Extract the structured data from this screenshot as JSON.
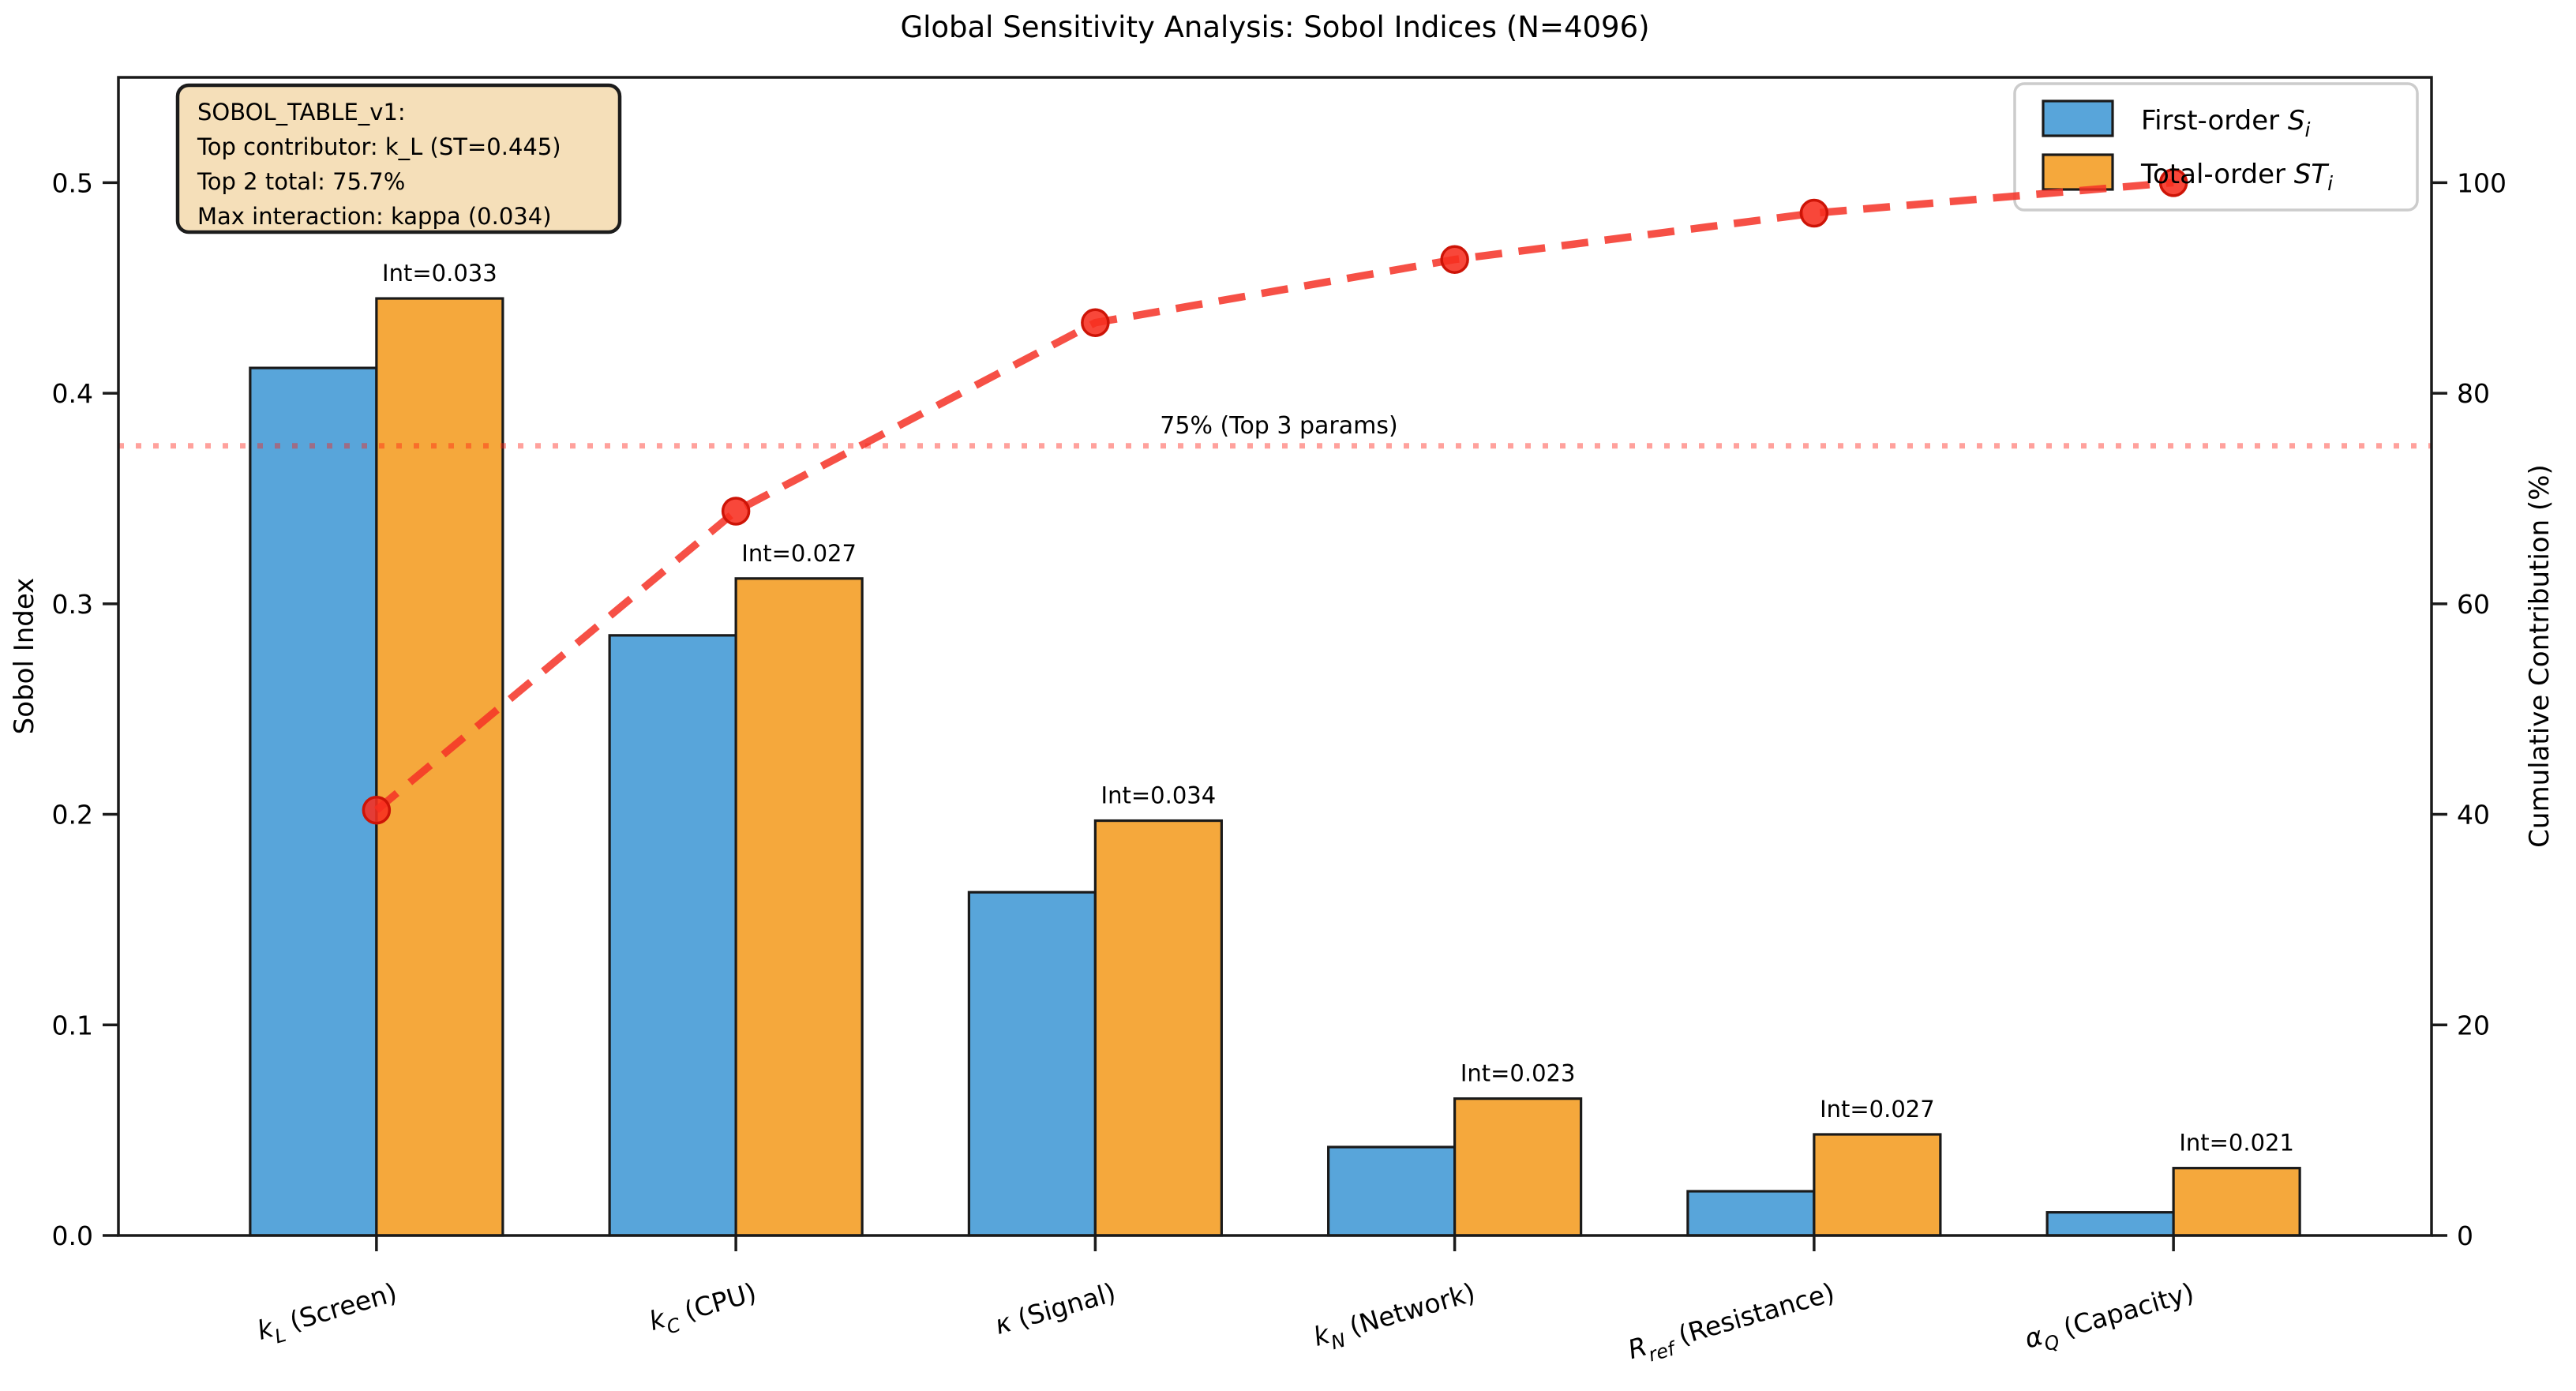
{
  "figure": {
    "title": "Global Sensitivity Analysis: Sobol Indices (N=4096)"
  },
  "axes": {
    "left": {
      "label": "Sobol Index",
      "tick_labels": [
        "0.0",
        "0.1",
        "0.2",
        "0.3",
        "0.4",
        "0.5"
      ],
      "color": "#000000"
    },
    "right": {
      "label": "Cumulative Contribution (%)",
      "tick_labels": [
        "0",
        "20",
        "40",
        "60",
        "80",
        "100"
      ],
      "color": "#ff0000"
    },
    "x": {
      "categories": [
        {
          "display": "k_L (Screen)",
          "base": "k",
          "sub": "L",
          "suffix": " (Screen)"
        },
        {
          "display": "k_C (CPU)",
          "base": "k",
          "sub": "C",
          "suffix": " (CPU)"
        },
        {
          "display": "κ (Signal)",
          "base": "κ",
          "sub": "",
          "suffix": " (Signal)"
        },
        {
          "display": "k_N (Network)",
          "base": "k",
          "sub": "N",
          "suffix": " (Network)"
        },
        {
          "display": "R_ref (Resistance)",
          "base": "R",
          "sub": "ref",
          "suffix": " (Resistance)"
        },
        {
          "display": "α_Q (Capacity)",
          "base": "α",
          "sub": "Q",
          "suffix": " (Capacity)"
        }
      ]
    }
  },
  "legend": {
    "entries": [
      {
        "prefix": "First-order ",
        "math": "S",
        "sub": "i",
        "color": "#58A5DA"
      },
      {
        "prefix": "Total-order ",
        "math": "ST",
        "sub": "i",
        "color": "#F5A83C"
      }
    ]
  },
  "annotation": {
    "lines": [
      "SOBOL_TABLE_v1:",
      "Top contributor: k_L (ST=0.445)",
      "Top 2 total: 75.7%",
      "Max interaction: kappa (0.034)"
    ],
    "bg_color": "#F5DFB9",
    "border_color": "#1c1c1c"
  },
  "threshold": {
    "label": "75% (Top 3 params)",
    "value": 75
  },
  "colors": {
    "first_order_bar": "#58A5DA",
    "total_order_bar": "#F5A83C",
    "bar_edge": "#1a1a1a",
    "cumulative_line": "#f53126",
    "marker_fill": "#f72d1f",
    "marker_edge": "#cd1407",
    "threshold_line": "#ff2014",
    "interaction_text": "#7f7f7f",
    "right_axis_text": "#ff0000",
    "legend_border": "#cccccc"
  },
  "chart_data": {
    "type": "bar",
    "title": "Global Sensitivity Analysis: Sobol Indices (N=4096)",
    "xlabel": "",
    "ylabel": "Sobol Index",
    "y2label": "Cumulative Contribution (%)",
    "ylim": [
      0,
      0.55
    ],
    "y2lim": [
      0,
      110
    ],
    "yticks": [
      0.0,
      0.1,
      0.2,
      0.3,
      0.4,
      0.5
    ],
    "y2ticks": [
      0,
      20,
      40,
      60,
      80,
      100
    ],
    "grid": false,
    "legend_position": "upper right",
    "categories": [
      "k_L (Screen)",
      "k_C (CPU)",
      "κ (Signal)",
      "k_N (Network)",
      "R_ref (Resistance)",
      "α_Q (Capacity)"
    ],
    "series": [
      {
        "name": "First-order S_i",
        "type": "bar",
        "axis": "left",
        "color": "#58A5DA",
        "values": [
          0.412,
          0.285,
          0.163,
          0.042,
          0.021,
          0.011
        ]
      },
      {
        "name": "Total-order ST_i",
        "type": "bar",
        "axis": "left",
        "color": "#F5A83C",
        "values": [
          0.445,
          0.312,
          0.197,
          0.065,
          0.048,
          0.032
        ]
      },
      {
        "name": "Cumulative Contribution (%)",
        "type": "line",
        "axis": "right",
        "color": "#f53126",
        "style": "dashed",
        "marker": "o",
        "values": [
          40.4,
          68.8,
          86.7,
          92.7,
          97.1,
          100.0
        ]
      }
    ],
    "interaction_label_prefix": "Int=",
    "interaction_values": [
      0.033,
      0.027,
      0.034,
      0.023,
      0.027,
      0.021
    ],
    "threshold_line": {
      "axis": "right",
      "value": 75,
      "label": "75% (Top 3 params)",
      "style": "dotted"
    },
    "annotation_text": "SOBOL_TABLE_v1: | Top contributor: k_L (ST=0.445) | Top 2 total: 75.7% | Max interaction: kappa (0.034)"
  }
}
